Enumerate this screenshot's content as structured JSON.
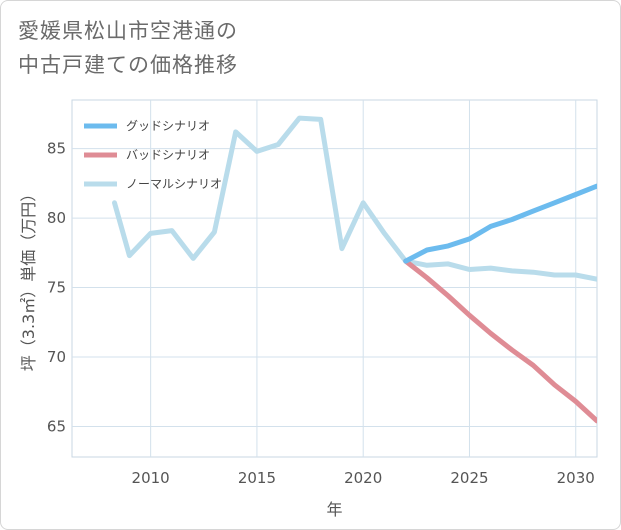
{
  "title_lines": [
    "愛媛県松山市空港通の",
    "中古戸建ての価格推移"
  ],
  "chart_data": {
    "type": "line",
    "title": "愛媛県松山市空港通の中古戸建ての価格推移",
    "xlabel": "年",
    "ylabel": "坪（3.3㎡）単価（万円）",
    "xlim": [
      2006.3,
      2031
    ],
    "ylim": [
      62.8,
      88.5
    ],
    "xticks": [
      2010,
      2015,
      2020,
      2025,
      2030
    ],
    "yticks": [
      65,
      70,
      75,
      80,
      85
    ],
    "grid": true,
    "legend_position": "top-left",
    "series": [
      {
        "name": "グッドシナリオ",
        "color": "#6cbbee",
        "x": [
          2022,
          2023,
          2024,
          2025,
          2026,
          2027,
          2028,
          2029,
          2030,
          2031
        ],
        "y": [
          76.9,
          77.7,
          78.0,
          78.5,
          79.4,
          79.9,
          80.5,
          81.1,
          81.7,
          82.3
        ]
      },
      {
        "name": "バッドシナリオ",
        "color": "#df8c95",
        "x": [
          2022,
          2023,
          2024,
          2025,
          2026,
          2027,
          2028,
          2029,
          2030,
          2031
        ],
        "y": [
          76.9,
          75.7,
          74.4,
          73.0,
          71.7,
          70.5,
          69.4,
          68.0,
          66.8,
          65.4
        ]
      },
      {
        "name": "ノーマルシナリオ",
        "color": "#b9dceb",
        "x": [
          2008.3,
          2009,
          2010,
          2011,
          2012,
          2013,
          2014,
          2015,
          2016,
          2017,
          2018,
          2019,
          2020,
          2021,
          2022,
          2023,
          2024,
          2025,
          2026,
          2027,
          2028,
          2029,
          2030,
          2031
        ],
        "y": [
          81.1,
          77.3,
          78.9,
          79.1,
          77.1,
          79.0,
          86.2,
          84.8,
          85.3,
          87.2,
          87.1,
          77.8,
          81.1,
          78.9,
          76.9,
          76.6,
          76.7,
          76.3,
          76.4,
          76.2,
          76.1,
          75.9,
          75.9,
          75.6
        ]
      }
    ]
  }
}
